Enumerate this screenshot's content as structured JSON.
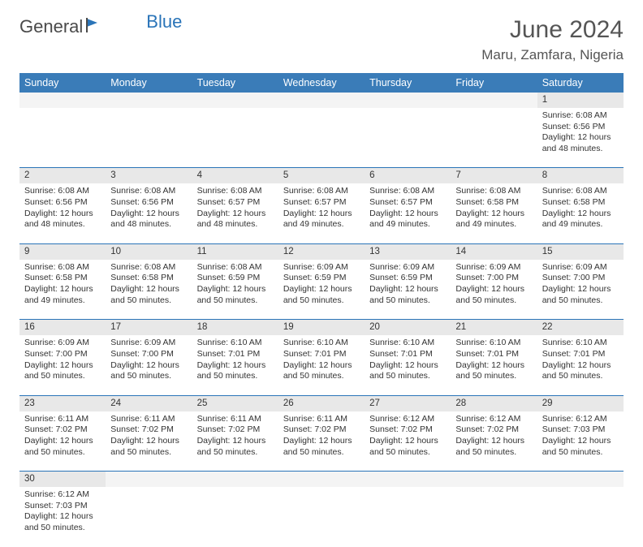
{
  "brand": {
    "part1": "General",
    "part2": "Blue"
  },
  "title": "June 2024",
  "location": "Maru, Zamfara, Nigeria",
  "colors": {
    "header_bg": "#3a7cb8",
    "header_text": "#ffffff",
    "daynum_bg": "#e8e8e8",
    "row_border": "#2a74b8",
    "text": "#333333",
    "logo_blue": "#2a74b8"
  },
  "weekdays": [
    "Sunday",
    "Monday",
    "Tuesday",
    "Wednesday",
    "Thursday",
    "Friday",
    "Saturday"
  ],
  "weeks": [
    {
      "nums": [
        "",
        "",
        "",
        "",
        "",
        "",
        "1"
      ],
      "cells": [
        null,
        null,
        null,
        null,
        null,
        null,
        {
          "sunrise": "6:08 AM",
          "sunset": "6:56 PM",
          "daylight": "12 hours and 48 minutes."
        }
      ]
    },
    {
      "nums": [
        "2",
        "3",
        "4",
        "5",
        "6",
        "7",
        "8"
      ],
      "cells": [
        {
          "sunrise": "6:08 AM",
          "sunset": "6:56 PM",
          "daylight": "12 hours and 48 minutes."
        },
        {
          "sunrise": "6:08 AM",
          "sunset": "6:56 PM",
          "daylight": "12 hours and 48 minutes."
        },
        {
          "sunrise": "6:08 AM",
          "sunset": "6:57 PM",
          "daylight": "12 hours and 48 minutes."
        },
        {
          "sunrise": "6:08 AM",
          "sunset": "6:57 PM",
          "daylight": "12 hours and 49 minutes."
        },
        {
          "sunrise": "6:08 AM",
          "sunset": "6:57 PM",
          "daylight": "12 hours and 49 minutes."
        },
        {
          "sunrise": "6:08 AM",
          "sunset": "6:58 PM",
          "daylight": "12 hours and 49 minutes."
        },
        {
          "sunrise": "6:08 AM",
          "sunset": "6:58 PM",
          "daylight": "12 hours and 49 minutes."
        }
      ]
    },
    {
      "nums": [
        "9",
        "10",
        "11",
        "12",
        "13",
        "14",
        "15"
      ],
      "cells": [
        {
          "sunrise": "6:08 AM",
          "sunset": "6:58 PM",
          "daylight": "12 hours and 49 minutes."
        },
        {
          "sunrise": "6:08 AM",
          "sunset": "6:58 PM",
          "daylight": "12 hours and 50 minutes."
        },
        {
          "sunrise": "6:08 AM",
          "sunset": "6:59 PM",
          "daylight": "12 hours and 50 minutes."
        },
        {
          "sunrise": "6:09 AM",
          "sunset": "6:59 PM",
          "daylight": "12 hours and 50 minutes."
        },
        {
          "sunrise": "6:09 AM",
          "sunset": "6:59 PM",
          "daylight": "12 hours and 50 minutes."
        },
        {
          "sunrise": "6:09 AM",
          "sunset": "7:00 PM",
          "daylight": "12 hours and 50 minutes."
        },
        {
          "sunrise": "6:09 AM",
          "sunset": "7:00 PM",
          "daylight": "12 hours and 50 minutes."
        }
      ]
    },
    {
      "nums": [
        "16",
        "17",
        "18",
        "19",
        "20",
        "21",
        "22"
      ],
      "cells": [
        {
          "sunrise": "6:09 AM",
          "sunset": "7:00 PM",
          "daylight": "12 hours and 50 minutes."
        },
        {
          "sunrise": "6:09 AM",
          "sunset": "7:00 PM",
          "daylight": "12 hours and 50 minutes."
        },
        {
          "sunrise": "6:10 AM",
          "sunset": "7:01 PM",
          "daylight": "12 hours and 50 minutes."
        },
        {
          "sunrise": "6:10 AM",
          "sunset": "7:01 PM",
          "daylight": "12 hours and 50 minutes."
        },
        {
          "sunrise": "6:10 AM",
          "sunset": "7:01 PM",
          "daylight": "12 hours and 50 minutes."
        },
        {
          "sunrise": "6:10 AM",
          "sunset": "7:01 PM",
          "daylight": "12 hours and 50 minutes."
        },
        {
          "sunrise": "6:10 AM",
          "sunset": "7:01 PM",
          "daylight": "12 hours and 50 minutes."
        }
      ]
    },
    {
      "nums": [
        "23",
        "24",
        "25",
        "26",
        "27",
        "28",
        "29"
      ],
      "cells": [
        {
          "sunrise": "6:11 AM",
          "sunset": "7:02 PM",
          "daylight": "12 hours and 50 minutes."
        },
        {
          "sunrise": "6:11 AM",
          "sunset": "7:02 PM",
          "daylight": "12 hours and 50 minutes."
        },
        {
          "sunrise": "6:11 AM",
          "sunset": "7:02 PM",
          "daylight": "12 hours and 50 minutes."
        },
        {
          "sunrise": "6:11 AM",
          "sunset": "7:02 PM",
          "daylight": "12 hours and 50 minutes."
        },
        {
          "sunrise": "6:12 AM",
          "sunset": "7:02 PM",
          "daylight": "12 hours and 50 minutes."
        },
        {
          "sunrise": "6:12 AM",
          "sunset": "7:02 PM",
          "daylight": "12 hours and 50 minutes."
        },
        {
          "sunrise": "6:12 AM",
          "sunset": "7:03 PM",
          "daylight": "12 hours and 50 minutes."
        }
      ]
    },
    {
      "nums": [
        "30",
        "",
        "",
        "",
        "",
        "",
        ""
      ],
      "cells": [
        {
          "sunrise": "6:12 AM",
          "sunset": "7:03 PM",
          "daylight": "12 hours and 50 minutes."
        },
        null,
        null,
        null,
        null,
        null,
        null
      ]
    }
  ],
  "labels": {
    "sunrise": "Sunrise:",
    "sunset": "Sunset:",
    "daylight": "Daylight:"
  }
}
